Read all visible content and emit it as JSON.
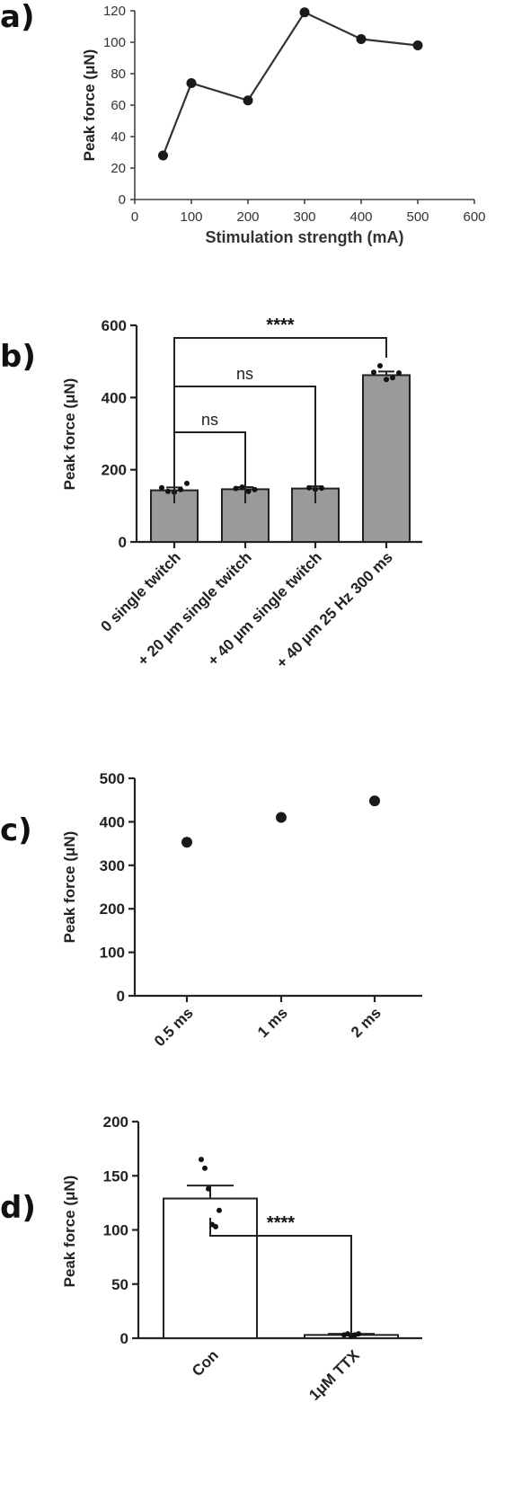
{
  "panels": {
    "a": "a)",
    "b": "b)",
    "c": "c)",
    "d": "d)"
  },
  "chart_data": [
    {
      "panel": "a",
      "type": "line",
      "xlabel": "Stimulation strength (mA)",
      "ylabel": "Peak force (μN)",
      "x": [
        50,
        100,
        200,
        300,
        400,
        500
      ],
      "y": [
        28,
        74,
        63,
        119,
        102,
        98
      ],
      "xlim": [
        0,
        600
      ],
      "ylim": [
        0,
        120
      ],
      "xticks": [
        "0",
        "100",
        "200",
        "300",
        "400",
        "500",
        "600"
      ],
      "yticks": [
        "0",
        "20",
        "40",
        "60",
        "80",
        "100",
        "120"
      ],
      "grid": false
    },
    {
      "panel": "b",
      "type": "bar",
      "ylabel": "Peak force (μN)",
      "categories": [
        "0 single twitch",
        "+ 20 µm single twitch",
        "+ 40 µm single twitch",
        "+ 40 µm 25 Hz 300 ms"
      ],
      "values": [
        143,
        146,
        148,
        462
      ],
      "errors": [
        8,
        6,
        6,
        10
      ],
      "points": [
        [
          150,
          140,
          138,
          145,
          162
        ],
        [
          148,
          152,
          140,
          145
        ],
        [
          150,
          146,
          149
        ],
        [
          470,
          488,
          450,
          455,
          468
        ]
      ],
      "ylim": [
        0,
        600
      ],
      "yticks": [
        "0",
        "200",
        "400",
        "600"
      ],
      "significance": [
        {
          "from": 0,
          "to": 1,
          "label": "ns"
        },
        {
          "from": 0,
          "to": 2,
          "label": "ns"
        },
        {
          "from": 0,
          "to": 3,
          "label": "****"
        }
      ],
      "bar_color": "#9a9a9a",
      "grid": false
    },
    {
      "panel": "c",
      "type": "scatter",
      "ylabel": "Peak force (μN)",
      "categories": [
        "0.5 ms",
        "1 ms",
        "2 ms"
      ],
      "values": [
        353,
        410,
        448
      ],
      "ylim": [
        0,
        500
      ],
      "yticks": [
        "0",
        "100",
        "200",
        "300",
        "400",
        "500"
      ],
      "grid": false
    },
    {
      "panel": "d",
      "type": "bar",
      "ylabel": "Peak force (μN)",
      "categories": [
        "Con",
        "1μM TTX"
      ],
      "values": [
        129,
        3
      ],
      "errors": [
        12,
        1
      ],
      "points": [
        [
          165,
          157,
          138,
          105,
          103,
          118
        ],
        [
          3,
          4,
          2,
          3,
          4
        ]
      ],
      "ylim": [
        0,
        200
      ],
      "yticks": [
        "0",
        "50",
        "100",
        "150",
        "200"
      ],
      "significance": [
        {
          "from": 0,
          "to": 1,
          "label": "****"
        }
      ],
      "bar_color": "#ffffff",
      "grid": false
    }
  ]
}
